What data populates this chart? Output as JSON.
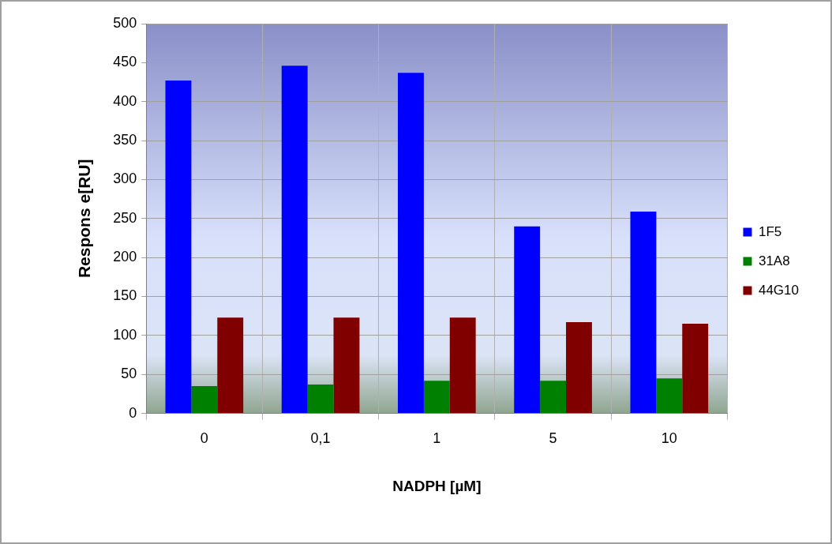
{
  "chart_data": {
    "type": "bar",
    "xlabel": "NADPH [µM]",
    "ylabel": "Respons e[RU]",
    "categories": [
      "0",
      "0,1",
      "1",
      "5",
      "10"
    ],
    "series": [
      {
        "name": "1F5",
        "color": "#0000ff",
        "values": [
          427,
          446,
          437,
          240,
          259
        ]
      },
      {
        "name": "31A8",
        "color": "#008000",
        "values": [
          35,
          37,
          42,
          42,
          45
        ]
      },
      {
        "name": "44G10",
        "color": "#800000",
        "values": [
          123,
          123,
          123,
          117,
          115
        ]
      }
    ],
    "ylim": [
      0,
      500
    ],
    "yticks": [
      0,
      50,
      100,
      150,
      200,
      250,
      300,
      350,
      400,
      450,
      500
    ],
    "grid": true,
    "legend": "right"
  }
}
